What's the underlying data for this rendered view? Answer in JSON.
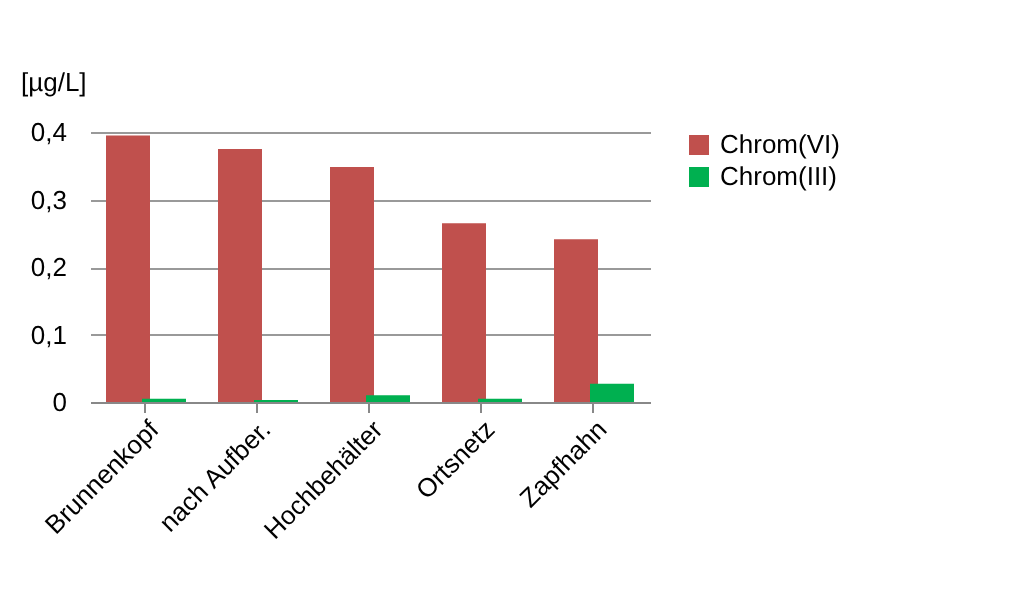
{
  "chart_data": {
    "type": "bar",
    "ylabel": "[µg/L]",
    "categories": [
      "Brunnenkopf",
      "nach Aufber.",
      "Hochbehälter",
      "Ortsnetz",
      "Zapfhahn"
    ],
    "series": [
      {
        "name": "Chrom(VI)",
        "color": "#c0504d",
        "values": [
          0.395,
          0.375,
          0.348,
          0.265,
          0.241
        ]
      },
      {
        "name": "Chrom(III)",
        "color": "#00b050",
        "values": [
          0.005,
          0.003,
          0.01,
          0.005,
          0.027
        ]
      }
    ],
    "ylim": [
      0,
      0.4
    ],
    "yticks": [
      {
        "value": 0,
        "label": "0"
      },
      {
        "value": 0.1,
        "label": "0,1"
      },
      {
        "value": 0.2,
        "label": "0,2"
      },
      {
        "value": 0.3,
        "label": "0,3"
      },
      {
        "value": 0.4,
        "label": "0,4"
      }
    ],
    "grid": "y",
    "legend": "right"
  }
}
